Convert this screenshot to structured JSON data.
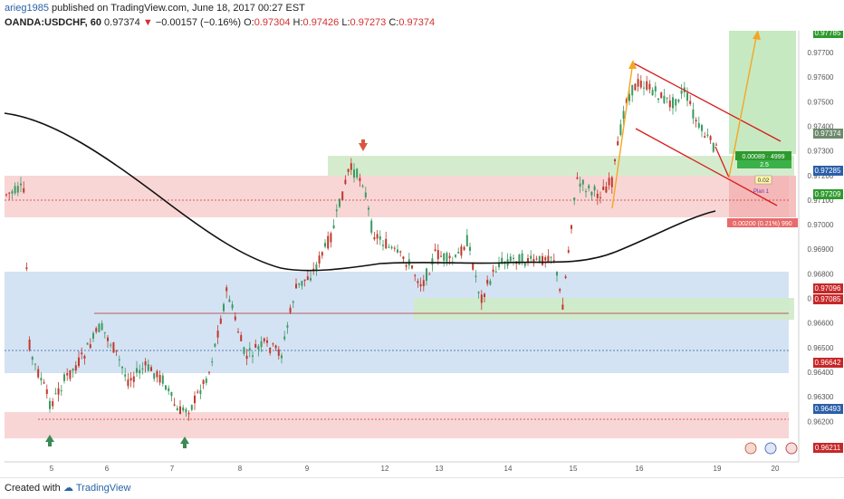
{
  "header": {
    "username": "arieg1985",
    "published_text": "published on TradingView.com, June 18, 2017 00:27 EST",
    "symbol": "OANDA:USDCHF, 60",
    "last_price": "0.97374",
    "change_arrow": "▼",
    "change": "−0.00157 (−0.16%)",
    "o_label": "O:",
    "o_value": "0.97304",
    "h_label": "H:",
    "h_value": "0.97426",
    "l_label": "L:",
    "l_value": "0.97273",
    "c_label": "C:",
    "c_value": "0.97374"
  },
  "price_axis": {
    "ticks": [
      "0.97700",
      "0.97600",
      "0.97500",
      "0.97400",
      "0.97300",
      "0.97200",
      "0.97100",
      "0.97000",
      "0.96900",
      "0.96800",
      "0.96700",
      "0.96600",
      "0.96500",
      "0.96400",
      "0.96300",
      "0.96200"
    ],
    "badges": [
      {
        "label": "0.97785",
        "color": "#2e9a2e"
      },
      {
        "label": "0.97374",
        "color": "#6d8a6d"
      },
      {
        "label": "0.97285",
        "color": "#2b5fa8"
      },
      {
        "label": "0.97209",
        "color": "#2e9a2e"
      },
      {
        "label": "0.97096",
        "color": "#c62828"
      },
      {
        "label": "0.97085",
        "color": "#c62828"
      },
      {
        "label": "0.96642",
        "color": "#c62828"
      },
      {
        "label": "0.96493",
        "color": "#2b5fa8"
      },
      {
        "label": "0.96211",
        "color": "#c62828"
      }
    ]
  },
  "time_axis": {
    "ticks": [
      "5",
      "6",
      "7",
      "8",
      "9",
      "12",
      "13",
      "14",
      "15",
      "16",
      "19",
      "20"
    ]
  },
  "annotations": {
    "long_position_label": "0.00089 · 4999",
    "long_position_ratio": "2.5",
    "short_position_label": "0.00200 (0.21%) 990",
    "small_box_label": "0.02",
    "plan_label": "Plan 1"
  },
  "footer": {
    "created_with": "Created with",
    "brand": "TradingView"
  },
  "colors": {
    "up_candle": "#3b9a62",
    "down_candle": "#c0392b",
    "red_zone": "#f4c7c7",
    "green_zone": "#c6e8c0",
    "blue_zone": "#c9dcf0",
    "ma_line": "#000000",
    "channel": "#d81b1b",
    "forecast": "#f5a623"
  }
}
